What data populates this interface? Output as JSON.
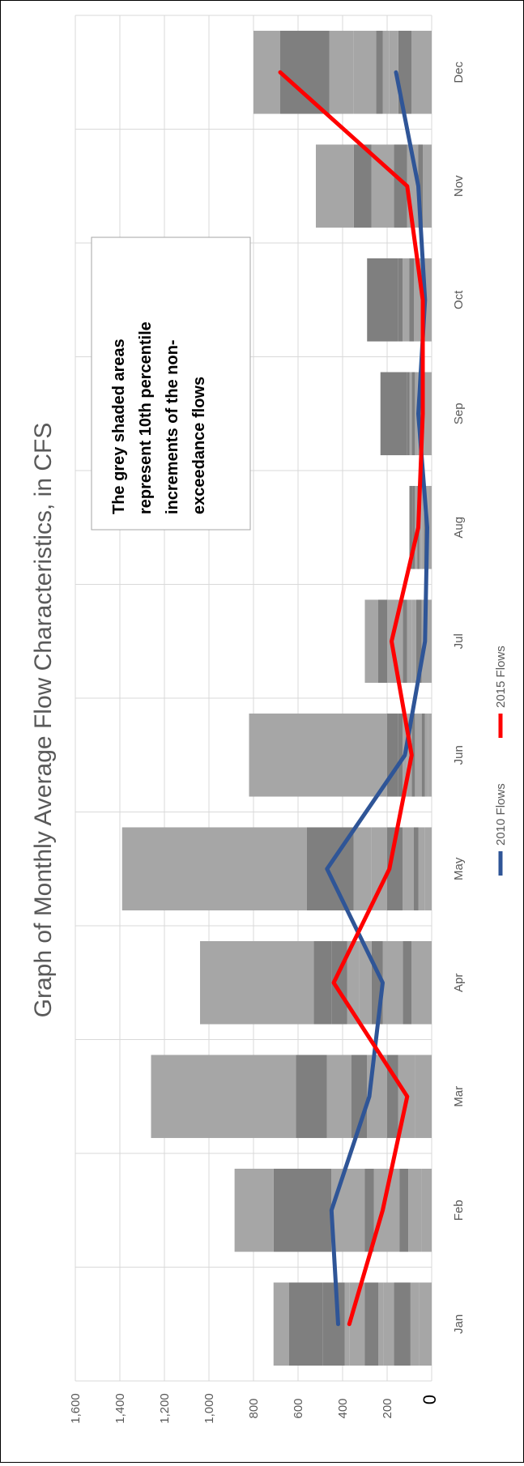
{
  "chart_data": {
    "type": "bar",
    "title": "Graph of Monthly Average Flow Characteristics, in CFS",
    "orientation": "rotated-90-ccw",
    "categories": [
      "Jan",
      "Feb",
      "Mar",
      "Apr",
      "May",
      "Jun",
      "Jul",
      "Aug",
      "Sep",
      "Oct",
      "Nov",
      "Dec"
    ],
    "y_ticks": [
      "0",
      "200",
      "400",
      "600",
      "800",
      "1,000",
      "1,200",
      "1,400",
      "1,600"
    ],
    "ylim": [
      0,
      1600
    ],
    "grid": true,
    "legend_position": "bottom",
    "annotation": [
      "The grey shaded areas",
      "represent 10th percentile",
      "increments of the non-",
      "exceedance flows"
    ],
    "percentile_bands": {
      "description": "cumulative upper bounds of each shaded band",
      "Jan": [
        55,
        95,
        170,
        215,
        240,
        300,
        370,
        390,
        490,
        640,
        710
      ],
      "Feb": [
        45,
        105,
        145,
        220,
        260,
        300,
        380,
        450,
        710,
        885
      ],
      "Mar": [
        75,
        150,
        200,
        240,
        290,
        360,
        420,
        470,
        500,
        610,
        1260
      ],
      "Apr": [
        40,
        90,
        130,
        160,
        220,
        270,
        325,
        380,
        450,
        530,
        1040
      ],
      "May": [
        30,
        60,
        80,
        100,
        130,
        200,
        270,
        350,
        460,
        560,
        1390
      ],
      "Jun": [
        15,
        30,
        45,
        60,
        75,
        90,
        110,
        130,
        150,
        200,
        820
      ],
      "Jul": [
        20,
        45,
        70,
        90,
        110,
        130,
        160,
        200,
        240,
        300
      ],
      "Aug": [
        15,
        25,
        35,
        45,
        55,
        65,
        75,
        85,
        100
      ],
      "Sep": [
        20,
        40,
        55,
        65,
        75,
        90,
        100,
        110,
        230
      ],
      "Oct": [
        20,
        40,
        50,
        60,
        80,
        100,
        130,
        150,
        290
      ],
      "Nov": [
        20,
        40,
        60,
        80,
        110,
        170,
        240,
        270,
        350,
        520
      ],
      "Dec": [
        40,
        90,
        150,
        190,
        220,
        250,
        350,
        460,
        680,
        800
      ]
    },
    "series": [
      {
        "name": "2010 Flows",
        "color": "#2f5597",
        "values": [
          420,
          450,
          280,
          220,
          470,
          120,
          30,
          20,
          60,
          30,
          60,
          160
        ]
      },
      {
        "name": "2015 Flows",
        "color": "#ff0000",
        "values": [
          370,
          220,
          110,
          440,
          190,
          90,
          180,
          60,
          40,
          40,
          110,
          680
        ]
      }
    ],
    "colors": {
      "band_light": "#a6a6a6",
      "band_dark": "#7f7f7f",
      "grid": "#d9d9d9"
    }
  }
}
